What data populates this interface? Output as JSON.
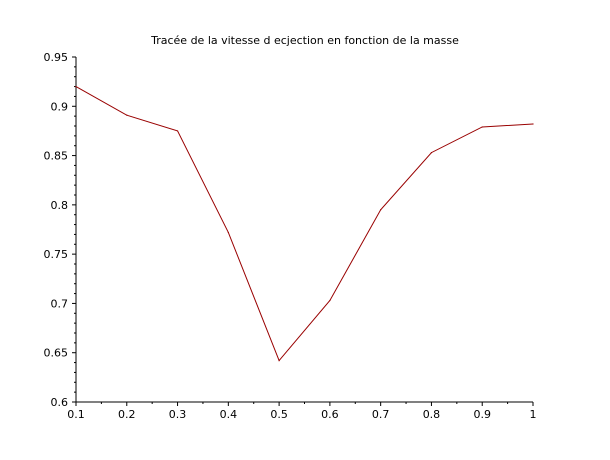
{
  "chart_data": {
    "type": "line",
    "title": "Tracée de la vitesse d ecjection en fonction de la masse",
    "xlabel": "",
    "ylabel": "",
    "xlim": [
      0.1,
      1
    ],
    "ylim": [
      0.6,
      0.95
    ],
    "x_ticks": [
      "0.1",
      "0.2",
      "0.3",
      "0.4",
      "0.5",
      "0.6",
      "0.7",
      "0.8",
      "0.9",
      "1"
    ],
    "y_ticks": [
      "0.6",
      "0.65",
      "0.7",
      "0.75",
      "0.8",
      "0.85",
      "0.9",
      "0.95"
    ],
    "x_tick_values": [
      0.1,
      0.2,
      0.3,
      0.4,
      0.5,
      0.6,
      0.7,
      0.8,
      0.9,
      1.0
    ],
    "y_tick_values": [
      0.6,
      0.65,
      0.7,
      0.75,
      0.8,
      0.85,
      0.9,
      0.95
    ],
    "grid": false,
    "legend": "none",
    "series": [
      {
        "color": "#990000",
        "x": [
          0.1,
          0.2,
          0.3,
          0.4,
          0.5,
          0.6,
          0.7,
          0.8,
          0.9,
          1.0
        ],
        "y": [
          0.92,
          0.891,
          0.875,
          0.772,
          0.642,
          0.703,
          0.795,
          0.853,
          0.879,
          0.882
        ]
      }
    ]
  }
}
